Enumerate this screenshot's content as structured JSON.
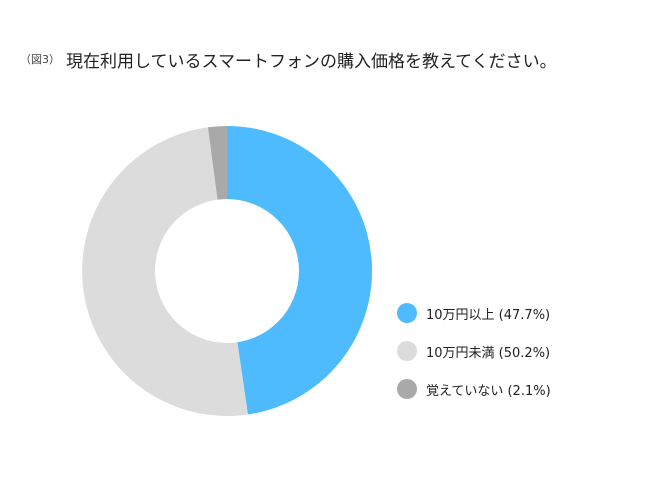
{
  "title": {
    "figure_label": "（図3）",
    "text": "現在利用しているスマートフォンの購入価格を教えてください。"
  },
  "legend": {
    "items": [
      {
        "label": "10万円以上 (47.7%)",
        "color": "#4dbbfd"
      },
      {
        "label": "10万円未満 (50.2%)",
        "color": "#dcdcdc"
      },
      {
        "label": "覚えていない (2.1%)",
        "color": "#a9a9a9"
      }
    ]
  },
  "chart_data": {
    "type": "pie",
    "variant": "donut",
    "title": "現在利用しているスマートフォンの購入価格を教えてください。",
    "slices": [
      {
        "label": "10万円以上",
        "value": 47.7,
        "color": "#4dbbfd"
      },
      {
        "label": "10万円未満",
        "value": 50.2,
        "color": "#dcdcdc"
      },
      {
        "label": "覚えていない",
        "value": 2.1,
        "color": "#a9a9a9"
      }
    ],
    "unit": "%",
    "legend_position": "right",
    "start_angle": "top, clockwise"
  }
}
